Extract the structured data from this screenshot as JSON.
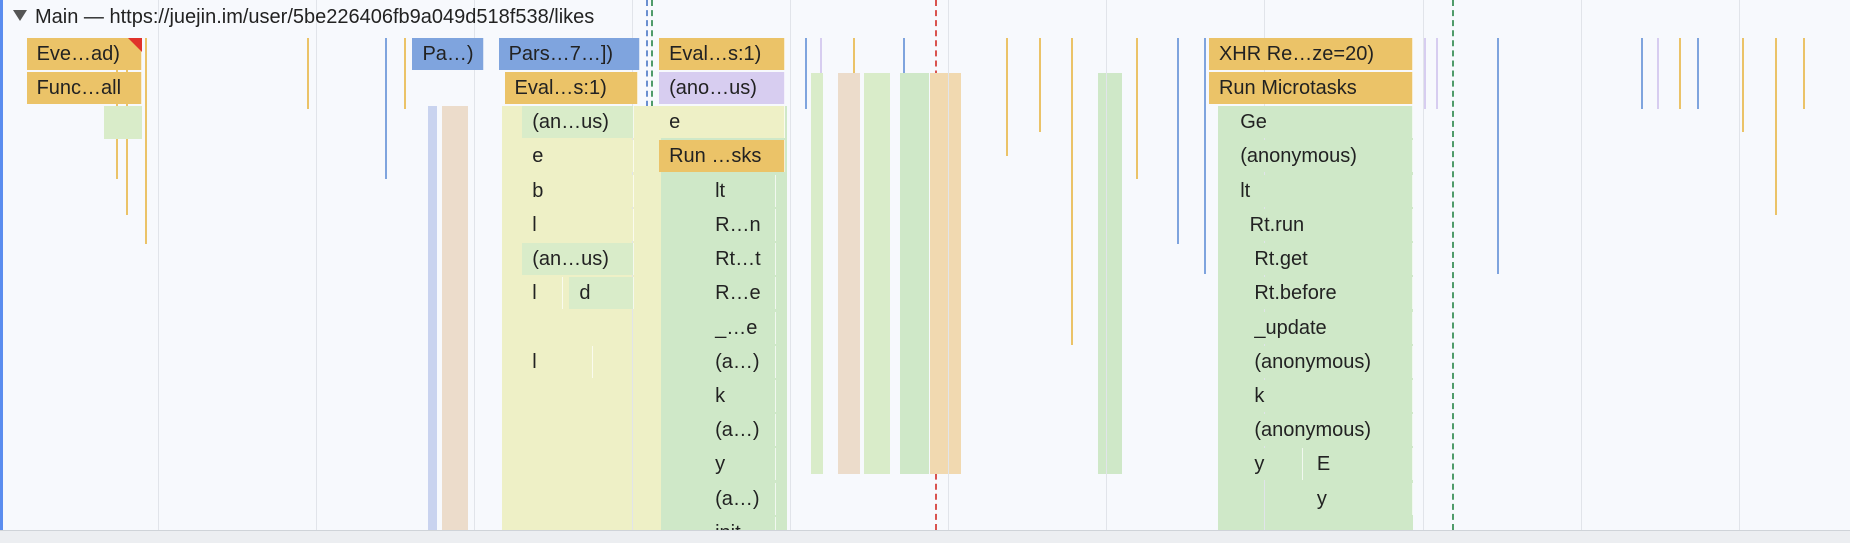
{
  "header": {
    "title": "Main — https://juejin.im/user/5be226406fb9a049d518f538/likes"
  },
  "rows": [
    [
      "Eve…ad)",
      "Pa…)",
      "Pars…7…])",
      "Eval…s:1)",
      "XHR Re…ze=20)"
    ],
    [
      "Func…all",
      "Eval…s:1)",
      "(ano…us)",
      "Run Microtasks"
    ],
    [
      "(an…us)",
      "e",
      "Ge"
    ],
    [
      "e",
      "Run …sks",
      "(anonymous)"
    ],
    [
      "b",
      "lt",
      "lt"
    ],
    [
      "l",
      "R…n",
      "Rt.run"
    ],
    [
      "(an…us)",
      "Rt…t",
      "Rt.get"
    ],
    [
      "l",
      "d",
      "R…e",
      "Rt.before"
    ],
    [
      "_…e",
      "_update"
    ],
    [
      "l",
      "(a…)",
      "(anonymous)"
    ],
    [
      "k",
      "k"
    ],
    [
      "(a…)",
      "(anonymous)"
    ],
    [
      "y",
      "y",
      "E"
    ],
    [
      "(a…)",
      "y"
    ],
    [
      "init"
    ]
  ]
}
